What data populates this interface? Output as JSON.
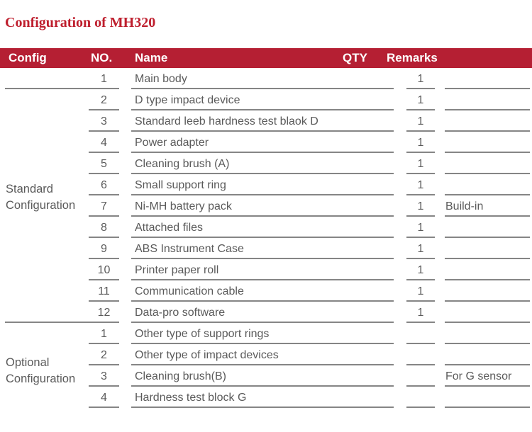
{
  "page": {
    "title": "Configuration of MH320"
  },
  "colors": {
    "accent_red": "#B51F33",
    "title_red": "#BE1E2D",
    "text_gray": "#5a5a5a",
    "line_gray": "#858585"
  },
  "table": {
    "headers": {
      "config": "Config",
      "no": "NO.",
      "name": "Name",
      "qty": "QTY",
      "remarks": "Remarks"
    },
    "sections": [
      {
        "label": "Standard Configuration",
        "rows": [
          {
            "no": "1",
            "name": "Main body",
            "qty": "1",
            "remarks": "",
            "config_line": true
          },
          {
            "no": "2",
            "name": "D type impact device",
            "qty": "1",
            "remarks": "",
            "config_line": false
          },
          {
            "no": "3",
            "name": "Standard leeb hardness test blaok D",
            "qty": "1",
            "remarks": "",
            "config_line": false
          },
          {
            "no": "4",
            "name": "Power adapter",
            "qty": "1",
            "remarks": "",
            "config_line": false
          },
          {
            "no": "5",
            "name": "Cleaning brush (A)",
            "qty": "1",
            "remarks": "",
            "config_line": false
          },
          {
            "no": "6",
            "name": "Small support ring",
            "qty": "1",
            "remarks": "",
            "config_line": false
          },
          {
            "no": "7",
            "name": "Ni-MH battery pack",
            "qty": "1",
            "remarks": "Build-in",
            "config_line": false
          },
          {
            "no": "8",
            "name": "Attached files",
            "qty": "1",
            "remarks": "",
            "config_line": false
          },
          {
            "no": "9",
            "name": "ABS Instrument Case",
            "qty": "1",
            "remarks": "",
            "config_line": false
          },
          {
            "no": "10",
            "name": "Printer paper roll",
            "qty": "1",
            "remarks": "",
            "config_line": false
          },
          {
            "no": "11",
            "name": "Communication cable",
            "qty": "1",
            "remarks": "",
            "config_line": false
          },
          {
            "no": "12",
            "name": "Data-pro software",
            "qty": "1",
            "remarks": "",
            "config_line": true
          }
        ]
      },
      {
        "label": "Optional Configuration",
        "rows": [
          {
            "no": "1",
            "name": "Other type of support rings",
            "qty": "",
            "remarks": "",
            "config_line": false
          },
          {
            "no": "2",
            "name": "Other type of impact devices",
            "qty": "",
            "remarks": "",
            "config_line": false
          },
          {
            "no": "3",
            "name": "Cleaning brush(B)",
            "qty": "",
            "remarks": "For G sensor",
            "config_line": false
          },
          {
            "no": "4",
            "name": "Hardness test block G",
            "qty": "",
            "remarks": "",
            "config_line": false
          }
        ]
      }
    ]
  }
}
